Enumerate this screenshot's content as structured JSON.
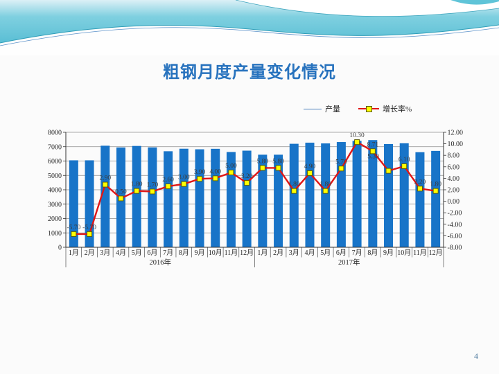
{
  "slide": {
    "title": "粗钢月度产量变化情况",
    "page_number": "4"
  },
  "colors": {
    "bar": "#1874c8",
    "line": "#e01616",
    "marker_fill": "#ffff00",
    "marker_border": "#5a5a00",
    "grid": "#8c8c8c",
    "axis": "#333333",
    "chart_text": "#262626",
    "title": "#2873be"
  },
  "legend": [
    {
      "label": "产量",
      "swatch": "blue-line"
    },
    {
      "label": "增长率%",
      "swatch": "red-line-yellow-square-marker"
    }
  ],
  "chart_data": {
    "type": "bar+line",
    "categories": [
      "1月",
      "2月",
      "3月",
      "4月",
      "5月",
      "6月",
      "7月",
      "8月",
      "9月",
      "10月",
      "11月",
      "12月",
      "1月",
      "2月",
      "3月",
      "4月",
      "5月",
      "6月",
      "7月",
      "8月",
      "9月",
      "10月",
      "11月",
      "12月"
    ],
    "year_groups": [
      {
        "label": "2016年",
        "count": 12
      },
      {
        "label": "2017年",
        "count": 12
      }
    ],
    "series": [
      {
        "name": "产量",
        "type": "bar",
        "axis": "left",
        "values": [
          6050,
          6050,
          7065,
          6942,
          7050,
          6947,
          6681,
          6857,
          6817,
          6851,
          6629,
          6722,
          6440,
          6440,
          7200,
          7278,
          7226,
          7323,
          7402,
          7459,
          7183,
          7236,
          6615,
          6705
        ]
      },
      {
        "name": "增长率%",
        "type": "line",
        "axis": "right",
        "marker": "square",
        "values": [
          -5.7,
          -5.7,
          2.9,
          0.5,
          1.8,
          1.7,
          2.6,
          3.0,
          3.9,
          4.0,
          5.0,
          3.2,
          5.8,
          5.8,
          1.8,
          4.9,
          1.8,
          5.7,
          10.3,
          8.71,
          5.3,
          6.1,
          2.2,
          1.8
        ],
        "data_labels": [
          "-5.70",
          "-5.70",
          "2.90",
          "0.50",
          "1.80",
          "1.70",
          "2.60",
          "3.00",
          "3.90",
          "4.00",
          "5.00",
          "3.20",
          "5.80",
          "5.80",
          "1.80",
          "4.90",
          "1.80",
          "5.70",
          "10.30",
          "8.71",
          "5.30",
          "6.10",
          "2.20",
          "1.80"
        ]
      }
    ],
    "left_axis": {
      "min": 0,
      "max": 8000,
      "step": 1000,
      "ticks": [
        "0",
        "1000",
        "2000",
        "3000",
        "4000",
        "5000",
        "6000",
        "7000",
        "8000"
      ]
    },
    "right_axis": {
      "min": -8,
      "max": 12,
      "step": 2,
      "ticks": [
        "-8.00",
        "-6.00",
        "-4.00",
        "-2.00",
        "0.00",
        "2.00",
        "4.00",
        "6.00",
        "8.00",
        "10.00",
        "12.00"
      ]
    },
    "grid": true,
    "legend_position": "top-right"
  }
}
